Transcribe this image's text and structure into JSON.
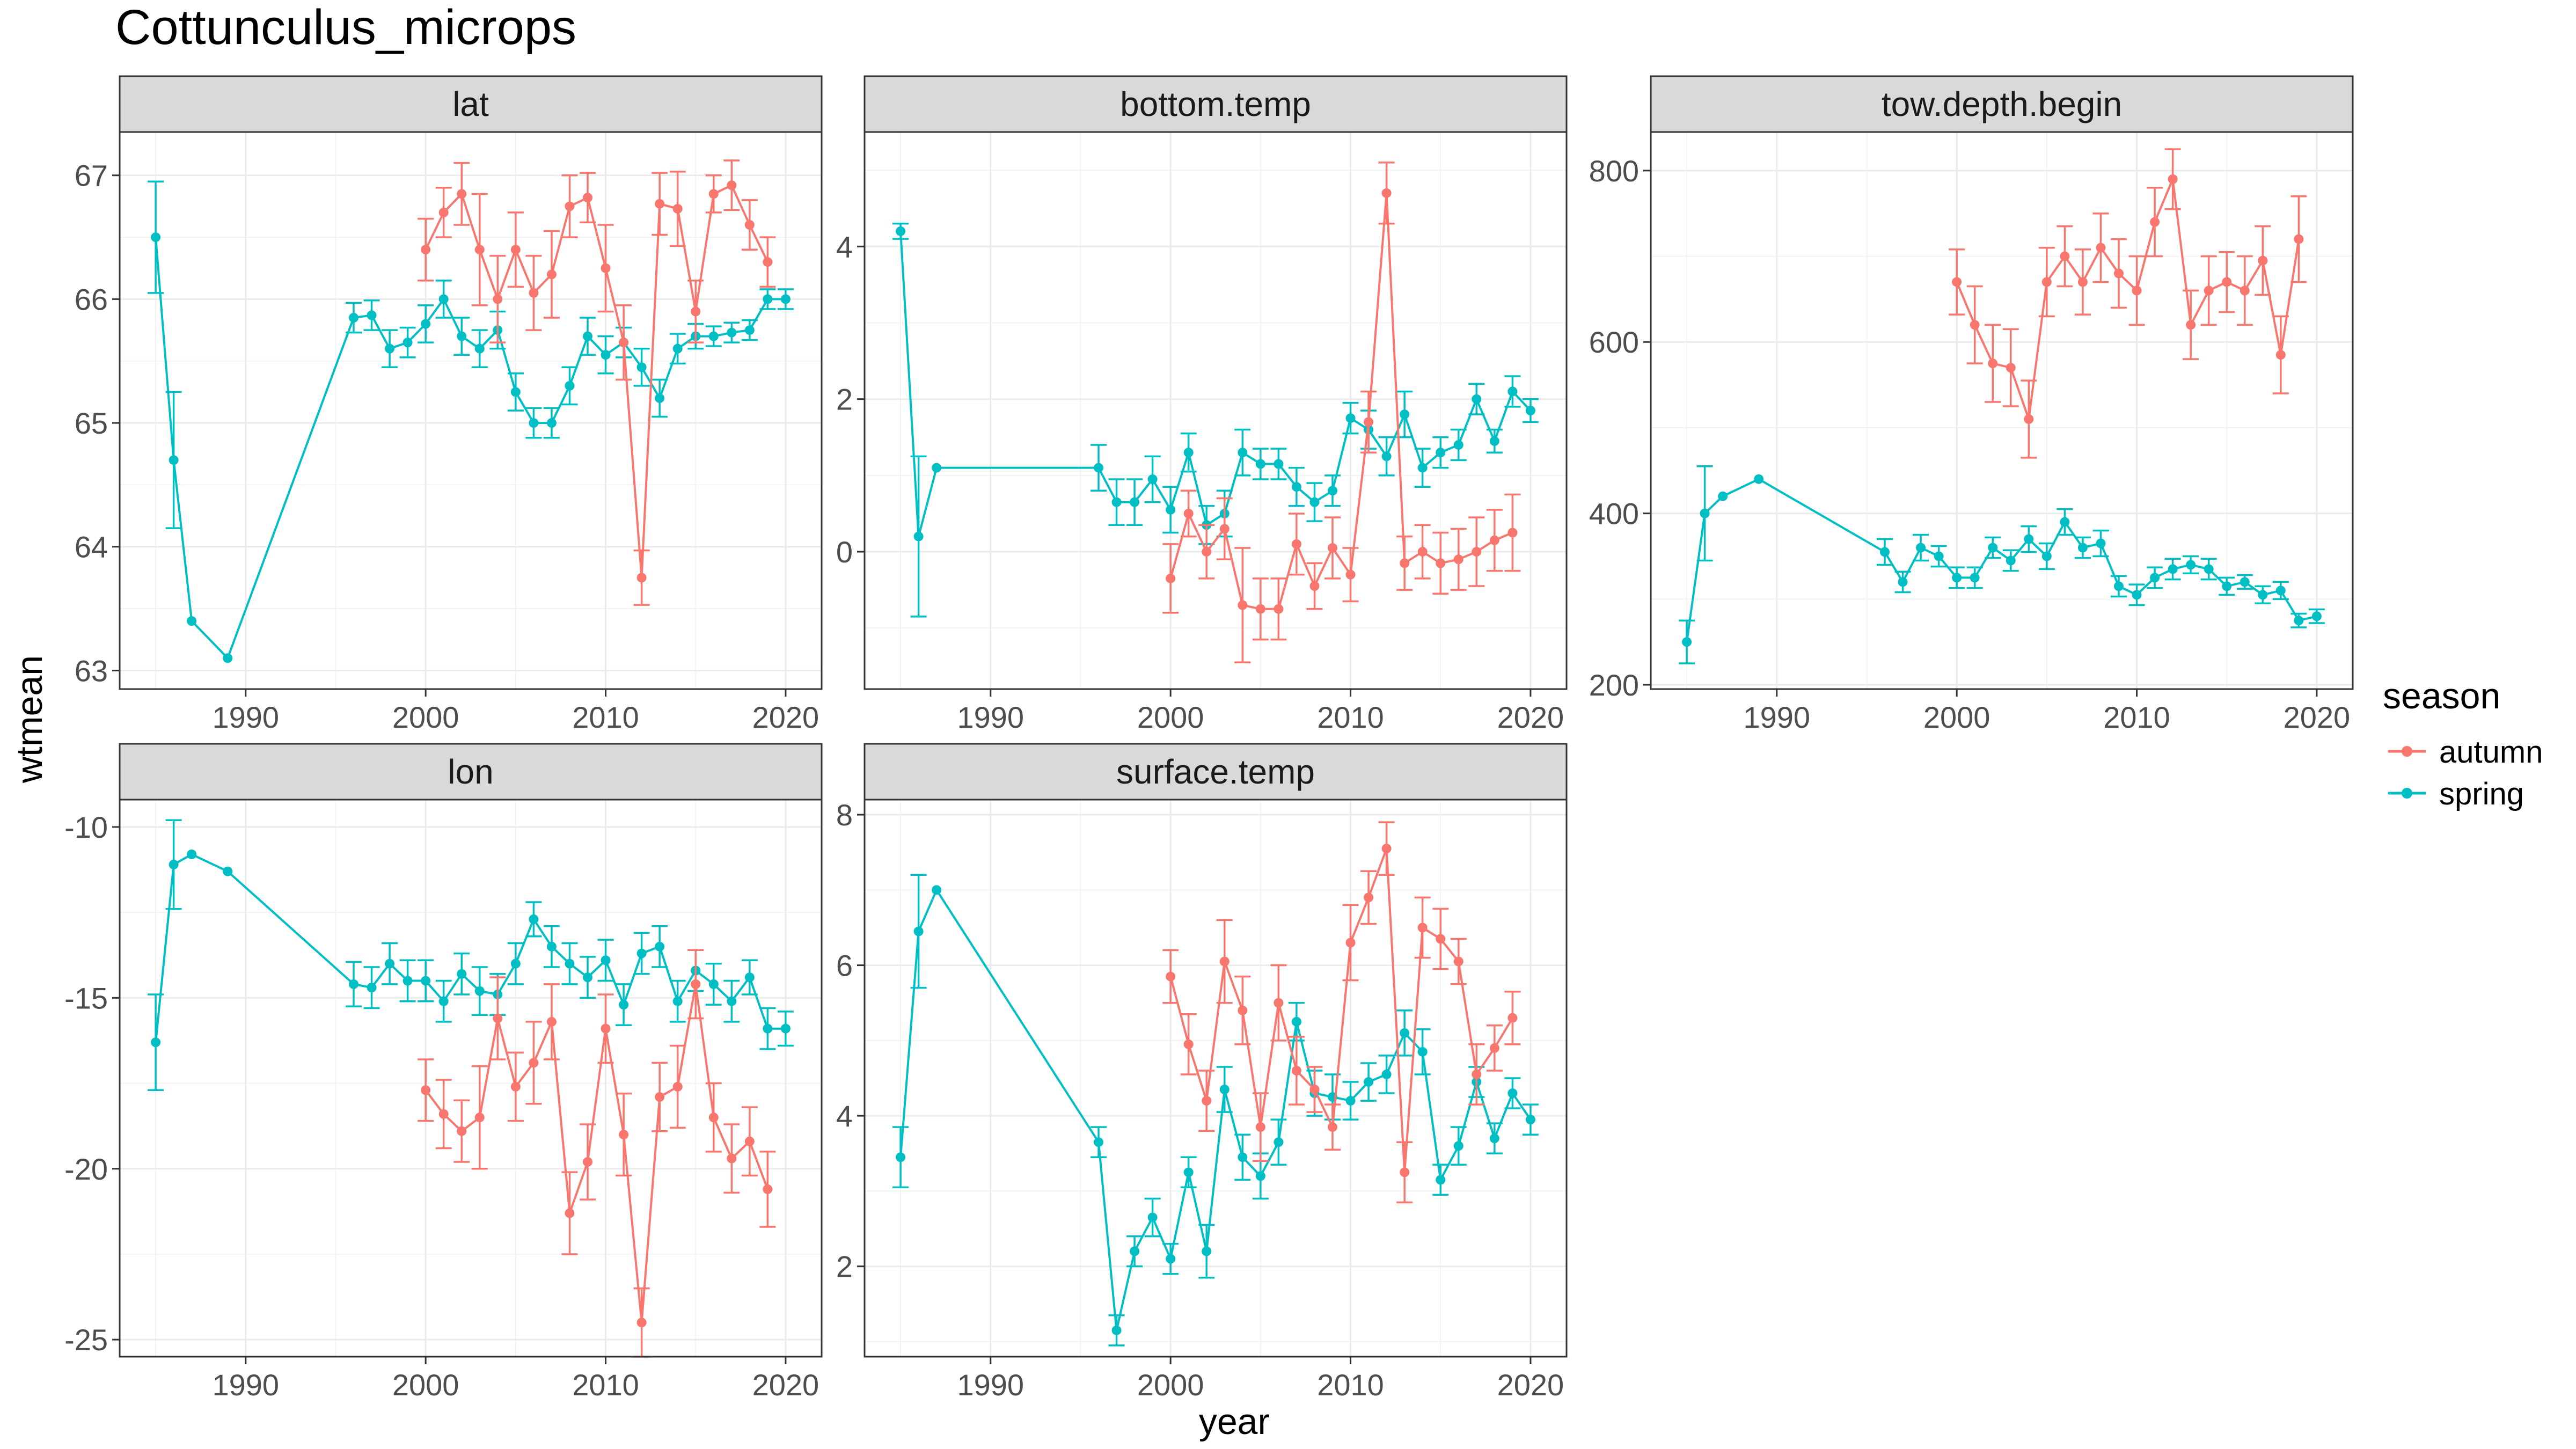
{
  "title": "Cottunculus_microps",
  "xlabel": "year",
  "ylabel": "wtmean",
  "legend": {
    "title": "season",
    "position": "right",
    "entries": [
      {
        "label": "autumn",
        "color": "#F8766D"
      },
      {
        "label": "spring",
        "color": "#00BFC4"
      }
    ]
  },
  "colors": {
    "autumn": "#F8766D",
    "spring": "#00BFC4",
    "strip": "#d9d9d9",
    "grid": "#ebebeb"
  },
  "chart_data": [
    {
      "type": "line",
      "title": "lat",
      "xlim": [
        1983,
        2022
      ],
      "ylim": [
        62.85,
        67.35
      ],
      "xticks": [
        1990,
        2000,
        2010,
        2020
      ],
      "yticks": [
        63,
        64,
        65,
        66,
        67
      ],
      "series": [
        {
          "name": "spring",
          "x": [
            1985,
            1986,
            1987,
            1989,
            1996,
            1997,
            1998,
            1999,
            2000,
            2001,
            2002,
            2003,
            2004,
            2005,
            2006,
            2007,
            2008,
            2009,
            2010,
            2011,
            2012,
            2013,
            2014,
            2015,
            2016,
            2017,
            2018,
            2019,
            2020
          ],
          "y": [
            66.5,
            64.7,
            63.4,
            63.1,
            65.85,
            65.87,
            65.6,
            65.65,
            65.8,
            66.0,
            65.7,
            65.6,
            65.75,
            65.25,
            65.0,
            65.0,
            65.3,
            65.7,
            65.55,
            65.65,
            65.45,
            65.2,
            65.6,
            65.7,
            65.7,
            65.73,
            65.75,
            66.0,
            66.0
          ],
          "err": [
            0.45,
            0.55,
            0,
            0,
            0.12,
            0.12,
            0.15,
            0.12,
            0.15,
            0.15,
            0.15,
            0.15,
            0.15,
            0.15,
            0.12,
            0.12,
            0.15,
            0.15,
            0.15,
            0.12,
            0.15,
            0.15,
            0.12,
            0.1,
            0.08,
            0.08,
            0.08,
            0.08,
            0.08
          ]
        },
        {
          "name": "autumn",
          "x": [
            2000,
            2001,
            2002,
            2003,
            2004,
            2005,
            2006,
            2007,
            2008,
            2009,
            2010,
            2011,
            2012,
            2013,
            2014,
            2015,
            2016,
            2017,
            2018,
            2019
          ],
          "y": [
            66.4,
            66.7,
            66.85,
            66.4,
            66.0,
            66.4,
            66.05,
            66.2,
            66.75,
            66.82,
            66.25,
            65.65,
            63.75,
            66.77,
            66.73,
            65.9,
            66.85,
            66.92,
            66.6,
            66.3
          ],
          "err": [
            0.25,
            0.2,
            0.25,
            0.45,
            0.35,
            0.3,
            0.3,
            0.35,
            0.25,
            0.2,
            0.35,
            0.3,
            0.22,
            0.25,
            0.3,
            0.25,
            0.15,
            0.2,
            0.2,
            0.2
          ]
        }
      ]
    },
    {
      "type": "line",
      "title": "bottom.temp",
      "xlim": [
        1983,
        2022
      ],
      "ylim": [
        -1.8,
        5.5
      ],
      "xticks": [
        1990,
        2000,
        2010,
        2020
      ],
      "yticks": [
        0,
        2,
        4
      ],
      "series": [
        {
          "name": "spring",
          "x": [
            1985,
            1986,
            1987,
            1996,
            1997,
            1998,
            1999,
            2000,
            2001,
            2002,
            2003,
            2004,
            2005,
            2006,
            2007,
            2008,
            2009,
            2010,
            2011,
            2012,
            2013,
            2014,
            2015,
            2016,
            2017,
            2018,
            2019,
            2020
          ],
          "y": [
            4.2,
            0.2,
            1.1,
            1.1,
            0.65,
            0.65,
            0.95,
            0.55,
            1.3,
            0.35,
            0.5,
            1.3,
            1.15,
            1.15,
            0.85,
            0.65,
            0.8,
            1.75,
            1.6,
            1.25,
            1.8,
            1.1,
            1.3,
            1.4,
            2.0,
            1.45,
            2.1,
            1.85
          ],
          "err": [
            0.1,
            1.05,
            0,
            0.3,
            0.3,
            0.3,
            0.3,
            0.3,
            0.25,
            0.25,
            0.3,
            0.3,
            0.2,
            0.2,
            0.25,
            0.25,
            0.2,
            0.2,
            0.25,
            0.25,
            0.3,
            0.25,
            0.2,
            0.2,
            0.2,
            0.15,
            0.2,
            0.15
          ]
        },
        {
          "name": "autumn",
          "x": [
            2000,
            2001,
            2002,
            2003,
            2004,
            2005,
            2006,
            2007,
            2008,
            2009,
            2010,
            2011,
            2012,
            2013,
            2014,
            2015,
            2016,
            2017,
            2018,
            2019
          ],
          "y": [
            -0.35,
            0.5,
            0.0,
            0.3,
            -0.7,
            -0.75,
            -0.75,
            0.1,
            -0.45,
            0.05,
            -0.3,
            1.7,
            4.7,
            -0.15,
            0.0,
            -0.15,
            -0.1,
            0.0,
            0.15,
            0.25
          ],
          "err": [
            0.45,
            0.3,
            0.35,
            0.4,
            0.75,
            0.4,
            0.4,
            0.4,
            0.3,
            0.4,
            0.35,
            0.4,
            0.4,
            0.35,
            0.35,
            0.4,
            0.4,
            0.45,
            0.4,
            0.5
          ]
        }
      ]
    },
    {
      "type": "line",
      "title": "tow.depth.begin",
      "xlim": [
        1983,
        2022
      ],
      "ylim": [
        195,
        845
      ],
      "xticks": [
        1990,
        2000,
        2010,
        2020
      ],
      "yticks": [
        200,
        400,
        600,
        800
      ],
      "series": [
        {
          "name": "spring",
          "x": [
            1985,
            1986,
            1987,
            1989,
            1996,
            1997,
            1998,
            1999,
            2000,
            2001,
            2002,
            2003,
            2004,
            2005,
            2006,
            2007,
            2008,
            2009,
            2010,
            2011,
            2012,
            2013,
            2014,
            2015,
            2016,
            2017,
            2018,
            2019,
            2020
          ],
          "y": [
            250,
            400,
            420,
            440,
            355,
            320,
            360,
            350,
            325,
            325,
            360,
            345,
            370,
            350,
            390,
            360,
            365,
            315,
            305,
            325,
            335,
            340,
            335,
            315,
            320,
            305,
            310,
            275,
            280
          ],
          "err": [
            25,
            55,
            0,
            0,
            15,
            12,
            15,
            12,
            12,
            12,
            12,
            12,
            15,
            15,
            15,
            12,
            15,
            12,
            12,
            12,
            12,
            10,
            12,
            10,
            8,
            10,
            10,
            8,
            8
          ]
        },
        {
          "name": "autumn",
          "x": [
            2000,
            2001,
            2002,
            2003,
            2004,
            2005,
            2006,
            2007,
            2008,
            2009,
            2010,
            2011,
            2012,
            2013,
            2014,
            2015,
            2016,
            2017,
            2018,
            2019
          ],
          "y": [
            670,
            620,
            575,
            570,
            510,
            670,
            700,
            670,
            710,
            680,
            660,
            740,
            790,
            620,
            660,
            670,
            660,
            695,
            585,
            720
          ],
          "err": [
            38,
            45,
            45,
            45,
            45,
            40,
            35,
            38,
            40,
            40,
            40,
            40,
            35,
            40,
            40,
            35,
            40,
            40,
            45,
            50
          ]
        }
      ]
    },
    {
      "type": "line",
      "title": "lon",
      "xlim": [
        1983,
        2022
      ],
      "ylim": [
        -25.5,
        -9.2
      ],
      "xticks": [
        1990,
        2000,
        2010,
        2020
      ],
      "yticks": [
        -25,
        -20,
        -15,
        -10
      ],
      "series": [
        {
          "name": "spring",
          "x": [
            1985,
            1986,
            1987,
            1989,
            1996,
            1997,
            1998,
            1999,
            2000,
            2001,
            2002,
            2003,
            2004,
            2005,
            2006,
            2007,
            2008,
            2009,
            2010,
            2011,
            2012,
            2013,
            2014,
            2015,
            2016,
            2017,
            2018,
            2019,
            2020
          ],
          "y": [
            -16.3,
            -11.1,
            -10.8,
            -11.3,
            -14.6,
            -14.7,
            -14.0,
            -14.5,
            -14.5,
            -15.1,
            -14.3,
            -14.8,
            -14.9,
            -14.0,
            -12.7,
            -13.5,
            -14.0,
            -14.4,
            -13.9,
            -15.2,
            -13.7,
            -13.5,
            -15.1,
            -14.2,
            -14.6,
            -15.1,
            -14.4,
            -15.9,
            -15.9
          ],
          "err": [
            1.4,
            1.3,
            0,
            0,
            0.65,
            0.6,
            0.6,
            0.6,
            0.6,
            0.6,
            0.6,
            0.7,
            0.6,
            0.6,
            0.5,
            0.6,
            0.6,
            0.6,
            0.6,
            0.6,
            0.6,
            0.6,
            0.6,
            0.6,
            0.6,
            0.6,
            0.5,
            0.6,
            0.5
          ]
        },
        {
          "name": "autumn",
          "x": [
            2000,
            2001,
            2002,
            2003,
            2004,
            2005,
            2006,
            2007,
            2008,
            2009,
            2010,
            2011,
            2012,
            2013,
            2014,
            2015,
            2016,
            2017,
            2018,
            2019
          ],
          "y": [
            -17.7,
            -18.4,
            -18.9,
            -18.5,
            -15.6,
            -17.6,
            -16.9,
            -15.7,
            -21.3,
            -19.8,
            -15.9,
            -19.0,
            -24.5,
            -17.9,
            -17.6,
            -14.6,
            -18.5,
            -19.7,
            -19.2,
            -20.6
          ],
          "err": [
            0.9,
            1.0,
            0.9,
            1.5,
            1.2,
            1.0,
            1.2,
            1.1,
            1.2,
            1.1,
            1.0,
            1.2,
            1.0,
            1.0,
            1.2,
            1.0,
            1.0,
            1.0,
            1.0,
            1.1
          ]
        }
      ]
    },
    {
      "type": "line",
      "title": "surface.temp",
      "xlim": [
        1983,
        2022
      ],
      "ylim": [
        0.8,
        8.2
      ],
      "xticks": [
        1990,
        2000,
        2010,
        2020
      ],
      "yticks": [
        2,
        4,
        6,
        8
      ],
      "series": [
        {
          "name": "spring",
          "x": [
            1985,
            1986,
            1987,
            1996,
            1997,
            1998,
            1999,
            2000,
            2001,
            2002,
            2003,
            2004,
            2005,
            2006,
            2007,
            2008,
            2009,
            2010,
            2011,
            2012,
            2013,
            2014,
            2015,
            2016,
            2017,
            2018,
            2019,
            2020
          ],
          "y": [
            3.45,
            6.45,
            7.0,
            3.65,
            1.15,
            2.2,
            2.65,
            2.1,
            3.25,
            2.2,
            4.35,
            3.45,
            3.2,
            3.65,
            5.25,
            4.3,
            4.25,
            4.2,
            4.45,
            4.55,
            5.1,
            4.85,
            3.15,
            3.6,
            4.45,
            3.7,
            4.3,
            3.95
          ],
          "err": [
            0.4,
            0.75,
            0,
            0.2,
            0.2,
            0.2,
            0.25,
            0.2,
            0.2,
            0.35,
            0.3,
            0.3,
            0.3,
            0.3,
            0.25,
            0.3,
            0.3,
            0.25,
            0.25,
            0.25,
            0.3,
            0.3,
            0.2,
            0.25,
            0.2,
            0.2,
            0.2,
            0.2
          ]
        },
        {
          "name": "autumn",
          "x": [
            2000,
            2001,
            2002,
            2003,
            2004,
            2005,
            2006,
            2007,
            2008,
            2009,
            2010,
            2011,
            2012,
            2013,
            2014,
            2015,
            2016,
            2017,
            2018,
            2019
          ],
          "y": [
            5.85,
            4.95,
            4.2,
            6.05,
            5.4,
            3.85,
            5.5,
            4.6,
            4.35,
            3.85,
            6.3,
            6.9,
            7.55,
            3.25,
            6.5,
            6.35,
            6.05,
            4.55,
            4.9,
            5.3
          ],
          "err": [
            0.35,
            0.4,
            0.4,
            0.55,
            0.45,
            0.45,
            0.5,
            0.45,
            0.3,
            0.3,
            0.5,
            0.35,
            0.35,
            0.4,
            0.4,
            0.4,
            0.3,
            0.4,
            0.3,
            0.35
          ]
        }
      ]
    }
  ]
}
